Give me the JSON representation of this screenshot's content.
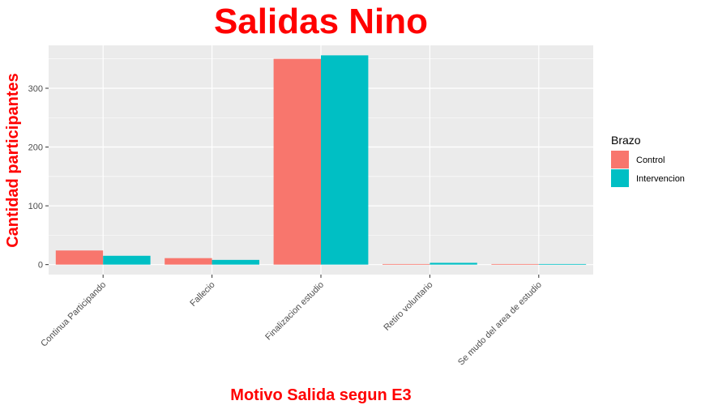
{
  "chart_data": {
    "type": "bar",
    "title": "Salidas Nino",
    "xlabel": "Motivo Salida segun E3",
    "ylabel": "Cantidad participantes",
    "categories": [
      "Continua Participando",
      "Fallecio",
      "Finalizacion estudio",
      "Retiro voluntario",
      "Se mudo del area de estudio"
    ],
    "series": [
      {
        "name": "Control",
        "color": "#F8766D",
        "values": [
          24,
          11,
          350,
          1,
          1
        ]
      },
      {
        "name": "Intervencion",
        "color": "#00BFC4",
        "values": [
          15,
          8,
          356,
          3,
          1
        ]
      }
    ],
    "yticks": [
      0,
      100,
      200,
      300
    ],
    "ylim": [
      -17,
      373
    ],
    "grid": true,
    "legend": {
      "title": "Brazo",
      "placement": "right"
    },
    "panel_color": "#EBEBEB",
    "grid_color": "#FFFFFF"
  }
}
